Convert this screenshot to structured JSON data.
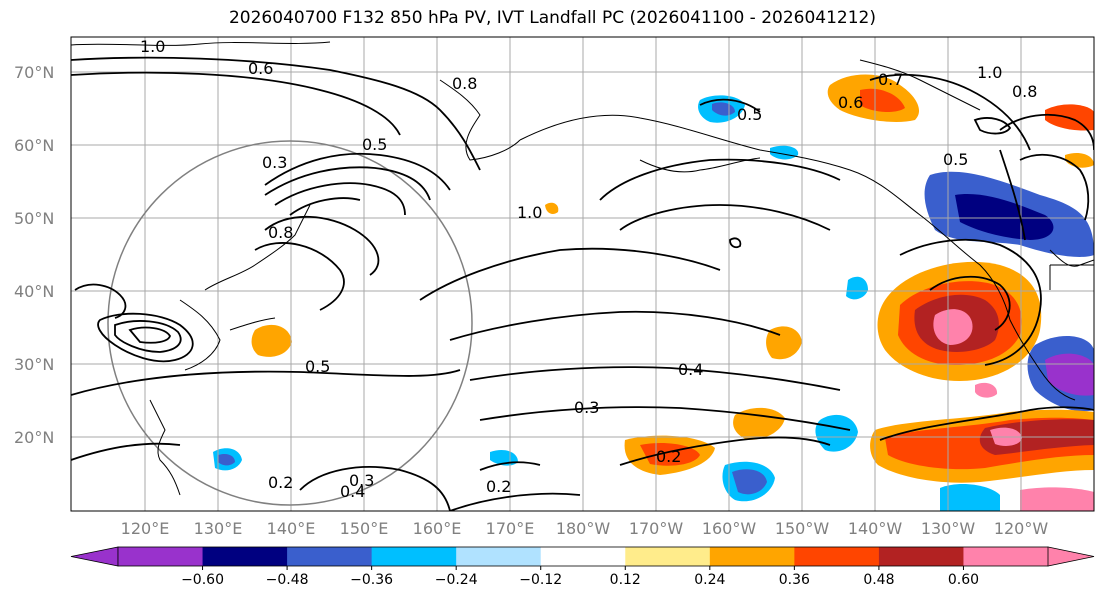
{
  "title": "2026040700 F132 850 hPa PV, IVT Landfall PC (2026041100 - 2026041212)",
  "lat_labels": [
    "70°N",
    "60°N",
    "50°N",
    "40°N",
    "30°N",
    "20°N"
  ],
  "lon_labels": [
    "120°E",
    "130°E",
    "140°E",
    "150°E",
    "160°E",
    "170°E",
    "180°W",
    "170°W",
    "160°W",
    "150°W",
    "140°W",
    "130°W",
    "120°W"
  ],
  "colorbar": {
    "colors": [
      "#9932cc",
      "#000080",
      "#3a5fcd",
      "#00bfff",
      "#b0e2ff",
      "#ffffff",
      "#ffec8b",
      "#ffa500",
      "#ff4500",
      "#b22222",
      "#ff82ab"
    ],
    "tick_labels": [
      "−0.60",
      "−0.48",
      "−0.36",
      "−0.24",
      "−0.12",
      "0.12",
      "0.24",
      "0.36",
      "0.48",
      "0.60"
    ]
  },
  "contour_labels": [
    "0.4",
    "0.3",
    "0.2",
    "0.5",
    "0.6",
    "0.8",
    "1.0",
    "0.2",
    "0.3",
    "0.4",
    "0.2",
    "0.5",
    "0.3",
    "0.5",
    "0.8",
    "1.0",
    "0.6",
    "0.7",
    "0.8",
    "1.0",
    "0.5"
  ]
}
